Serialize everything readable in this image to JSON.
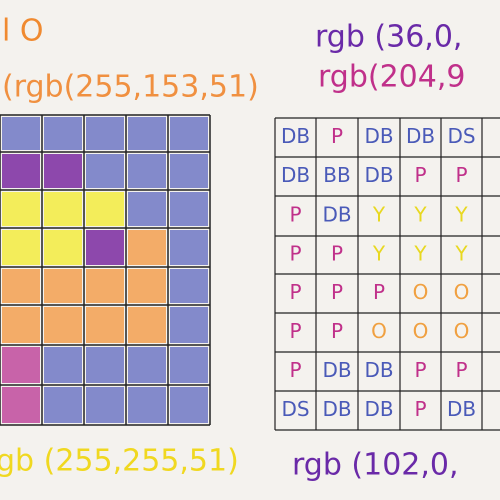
{
  "labels": {
    "top_left": "l  O",
    "top_right": "rgb (36,0,",
    "orange": "(rgb(255,153,51)",
    "magenta": "rgb(204,9",
    "bottom_left": "gb (255,255,51)",
    "bottom_right": "rgb (102,0,"
  },
  "table": {
    "rows": [
      [
        "DB",
        "P",
        "DB",
        "DB",
        "DS"
      ],
      [
        "DB",
        "BB",
        "DB",
        "P",
        "P"
      ],
      [
        "P",
        "DB",
        "Y",
        "Y",
        "Y"
      ],
      [
        "P",
        "P",
        "Y",
        "Y",
        "Y"
      ],
      [
        "P",
        "P",
        "P",
        "O",
        "O"
      ],
      [
        "P",
        "P",
        "O",
        "O",
        "O"
      ],
      [
        "P",
        "DB",
        "DB",
        "P",
        "P"
      ],
      [
        "DS",
        "DB",
        "DB",
        "P",
        "DB"
      ]
    ]
  }
}
